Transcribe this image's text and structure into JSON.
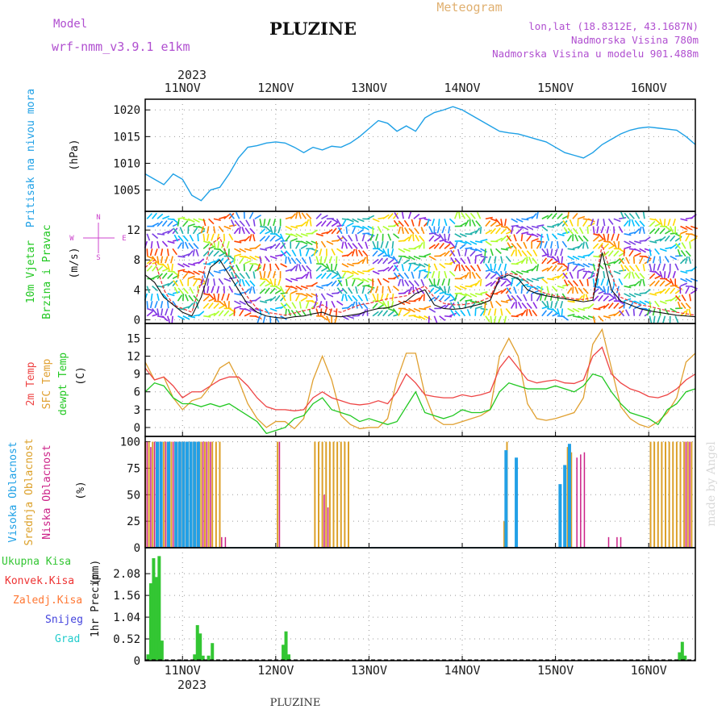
{
  "header": {
    "model_label": "Model",
    "model_name": "wrf-nmm_v3.9.1  e1km",
    "title": "PLUZINE",
    "meteogram_label": "Meteogram",
    "lonlat": "lon,lat (18.8312E, 43.1687N)",
    "elevation": "Nadmorska Visina 780m",
    "model_elevation": "Nadmorska Visina u modelu 901.488m"
  },
  "footer": {
    "station": "PLUZINE",
    "watermark": "made by Angel"
  },
  "colors": {
    "pressure": "#1ea0e6",
    "t2m": "#ee4444",
    "tsfc": "#e0a030",
    "dewpt": "#22c822",
    "cloud_high": "#22a0e6",
    "cloud_mid": "#dca028",
    "cloud_low": "#cc2288",
    "precip_total": "#33c633",
    "precip_conv": "#ee3333",
    "precip_frz": "#ff7733",
    "snow": "#4444dd",
    "hail": "#22cccc",
    "wind_ylabel": "#22c822",
    "wind_axis": "#cc44cc"
  },
  "chart_data": [
    {
      "type": "line",
      "name": "pressure",
      "ylabel": "Pritisak na nivou mora",
      "unit": "(hPa)",
      "yticks": [
        1005,
        1010,
        1015,
        1020
      ],
      "ylim": [
        1001,
        1022
      ],
      "xlim": [
        10.6,
        16.5
      ],
      "year": "2023",
      "days": [
        "11NOV",
        "12NOV",
        "13NOV",
        "14NOV",
        "15NOV",
        "16NOV"
      ],
      "grid": true,
      "x": [
        10.6,
        10.7,
        10.8,
        10.9,
        11.0,
        11.1,
        11.2,
        11.3,
        11.4,
        11.5,
        11.6,
        11.7,
        11.8,
        11.9,
        12.0,
        12.1,
        12.2,
        12.3,
        12.4,
        12.5,
        12.6,
        12.7,
        12.8,
        12.9,
        13.0,
        13.1,
        13.2,
        13.3,
        13.4,
        13.5,
        13.6,
        13.7,
        13.8,
        13.9,
        14.0,
        14.1,
        14.2,
        14.3,
        14.4,
        14.5,
        14.6,
        14.7,
        14.8,
        14.9,
        15.0,
        15.1,
        15.2,
        15.3,
        15.4,
        15.5,
        15.6,
        15.7,
        15.8,
        15.9,
        16.0,
        16.1,
        16.2,
        16.3,
        16.4,
        16.5
      ],
      "y": [
        1008,
        1007,
        1006,
        1008,
        1007,
        1004,
        1003,
        1005,
        1005.5,
        1008,
        1011,
        1013,
        1013.3,
        1013.8,
        1014,
        1013.8,
        1013,
        1012,
        1013,
        1012.5,
        1013.2,
        1013,
        1013.8,
        1015,
        1016.5,
        1018,
        1017.5,
        1016,
        1017,
        1016,
        1018.5,
        1019.5,
        1020,
        1020.6,
        1020,
        1019,
        1018,
        1017,
        1016,
        1015.7,
        1015.5,
        1015,
        1014.5,
        1014,
        1013,
        1012,
        1011.5,
        1011,
        1012,
        1013.5,
        1014.5,
        1015.5,
        1016.2,
        1016.6,
        1016.8,
        1016.6,
        1016.4,
        1016.2,
        1015,
        1013.5
      ]
    },
    {
      "type": "line",
      "name": "wind",
      "ylabel_lines": [
        "10m Vjetar",
        "Brzina i Pravac"
      ],
      "unit": "(m/s)",
      "yticks": [
        0,
        4,
        8,
        12
      ],
      "ylim": [
        -0.5,
        14.5
      ],
      "compass": {
        "n": "N",
        "s": "S",
        "w": "W",
        "e": "E"
      },
      "series": [
        {
          "name": "speed",
          "x": [
            10.6,
            10.7,
            10.8,
            10.9,
            11.0,
            11.1,
            11.2,
            11.3,
            11.4,
            11.5,
            11.6,
            11.7,
            11.8,
            11.9,
            12.0,
            12.1,
            12.2,
            12.3,
            12.4,
            12.5,
            12.6,
            12.7,
            12.8,
            12.9,
            13.0,
            13.1,
            13.2,
            13.3,
            13.4,
            13.5,
            13.6,
            13.7,
            13.8,
            13.9,
            14.0,
            14.1,
            14.2,
            14.3,
            14.4,
            14.5,
            14.6,
            14.7,
            14.8,
            14.9,
            15.0,
            15.1,
            15.2,
            15.3,
            15.4,
            15.5,
            15.6,
            15.7,
            15.8,
            15.9,
            16.0,
            16.1,
            16.2,
            16.3,
            16.4,
            16.5
          ],
          "y": [
            6,
            5,
            3,
            2,
            1,
            0.5,
            3,
            7,
            8,
            6,
            4,
            2,
            1,
            0.5,
            0.3,
            0.2,
            0.4,
            0.5,
            0.8,
            1,
            0.5,
            0.4,
            0.6,
            0.8,
            1.2,
            1.5,
            1.6,
            2,
            2.5,
            3.5,
            4,
            2,
            1.5,
            1.4,
            1.5,
            1.8,
            2.1,
            2.6,
            5.5,
            6,
            5.5,
            4,
            3.5,
            3.2,
            3,
            2.8,
            2.6,
            2.4,
            2.6,
            9,
            4,
            2.5,
            2,
            1.5,
            1.2,
            1,
            0.8,
            0.6,
            0.5,
            0.4
          ]
        },
        {
          "name": "gust",
          "x": [
            10.6,
            10.7,
            10.8,
            10.9,
            11.0,
            11.1,
            11.2,
            11.3,
            11.4,
            11.5,
            11.6,
            11.7,
            11.8,
            11.9,
            12.0,
            12.1,
            12.2,
            12.3,
            12.4,
            12.5,
            12.6,
            12.7,
            12.8,
            12.9,
            13.0,
            13.1,
            13.2,
            13.3,
            13.4,
            13.5,
            13.6,
            13.7,
            13.8,
            13.9,
            14.0,
            14.1,
            14.2,
            14.3,
            14.4,
            14.5,
            14.6,
            14.7,
            14.8,
            14.9,
            15.0,
            15.1,
            15.2,
            15.3,
            15.4,
            15.5,
            15.6,
            15.7,
            15.8,
            15.9,
            16.0,
            16.1,
            16.2,
            16.3,
            16.4,
            16.5
          ],
          "y": [
            7,
            8,
            4,
            2,
            1.5,
            1,
            5,
            10,
            11,
            8,
            5,
            3,
            1.5,
            1,
            0.8,
            0.6,
            0.9,
            1.2,
            1.5,
            2,
            1.2,
            1,
            1.5,
            2,
            2.2,
            2.5,
            2.8,
            3,
            3.2,
            4,
            4.5,
            3,
            2.2,
            2,
            2,
            2.2,
            2.5,
            3,
            5.8,
            6.2,
            6,
            5,
            4,
            3.5,
            3.2,
            3,
            2.8,
            2.7,
            3,
            10,
            6,
            3,
            2.5,
            2,
            1.8,
            1.5,
            1.2,
            1,
            0.8,
            0.6
          ]
        }
      ]
    },
    {
      "type": "line",
      "name": "temperature",
      "ylabel_lines": [
        "2m Temp",
        "SFC Temp",
        "dewpt Temp"
      ],
      "unit": "(C)",
      "yticks": [
        0,
        3,
        6,
        9,
        12,
        15
      ],
      "ylim": [
        -1.5,
        17.5
      ],
      "series": [
        {
          "name": "2m Temp",
          "x": [
            10.6,
            10.7,
            10.8,
            10.9,
            11.0,
            11.1,
            11.2,
            11.3,
            11.4,
            11.5,
            11.6,
            11.7,
            11.8,
            11.9,
            12.0,
            12.1,
            12.2,
            12.3,
            12.4,
            12.5,
            12.6,
            12.7,
            12.8,
            12.9,
            13.0,
            13.1,
            13.2,
            13.3,
            13.4,
            13.5,
            13.6,
            13.7,
            13.8,
            13.9,
            14.0,
            14.1,
            14.2,
            14.3,
            14.4,
            14.5,
            14.6,
            14.7,
            14.8,
            14.9,
            15.0,
            15.1,
            15.2,
            15.3,
            15.4,
            15.5,
            15.6,
            15.7,
            15.8,
            15.9,
            16.0,
            16.1,
            16.2,
            16.3,
            16.4,
            16.5
          ],
          "y": [
            10,
            8,
            8.5,
            7,
            5,
            6,
            6,
            7,
            8,
            8.5,
            8.5,
            7,
            5,
            3.5,
            3,
            3,
            2.8,
            3,
            5,
            6,
            5,
            4.5,
            4,
            3.8,
            4,
            4.5,
            4,
            6,
            9,
            7.5,
            5.5,
            5.2,
            5,
            5,
            5.5,
            5.2,
            5.5,
            6,
            10,
            12,
            10,
            8,
            7.5,
            7.8,
            8,
            7.5,
            7.4,
            8,
            12,
            13.5,
            9,
            7.5,
            6.5,
            6,
            5.2,
            5,
            5.5,
            6.5,
            8,
            9
          ]
        },
        {
          "name": "SFC Temp",
          "x": [
            10.6,
            10.7,
            10.8,
            10.9,
            11.0,
            11.1,
            11.2,
            11.3,
            11.4,
            11.5,
            11.6,
            11.7,
            11.8,
            11.9,
            12.0,
            12.1,
            12.2,
            12.3,
            12.4,
            12.5,
            12.6,
            12.7,
            12.8,
            12.9,
            13.0,
            13.1,
            13.2,
            13.3,
            13.4,
            13.5,
            13.6,
            13.7,
            13.8,
            13.9,
            14.0,
            14.1,
            14.2,
            14.3,
            14.4,
            14.5,
            14.6,
            14.7,
            14.8,
            14.9,
            15.0,
            15.1,
            15.2,
            15.3,
            15.4,
            15.5,
            15.6,
            15.7,
            15.8,
            15.9,
            16.0,
            16.1,
            16.2,
            16.3,
            16.4,
            16.5
          ],
          "y": [
            11,
            8,
            8.5,
            5,
            3,
            4.5,
            5,
            7,
            10,
            11,
            8,
            4,
            1.5,
            0,
            1,
            1,
            -0.2,
            1.5,
            8,
            12,
            8,
            2,
            0.5,
            -0.2,
            0,
            0,
            1.5,
            8,
            12.5,
            12.5,
            5.5,
            1.5,
            0.5,
            0.5,
            1,
            1.5,
            2,
            3,
            12,
            15,
            12,
            4,
            1.5,
            1.2,
            1.5,
            2,
            2.5,
            5,
            14,
            16.5,
            10,
            3.5,
            1.5,
            0.5,
            0,
            1,
            2.5,
            5,
            11,
            12.5
          ]
        },
        {
          "name": "dewpt Temp",
          "x": [
            10.6,
            10.7,
            10.8,
            10.9,
            11.0,
            11.1,
            11.2,
            11.3,
            11.4,
            11.5,
            11.6,
            11.7,
            11.8,
            11.9,
            12.0,
            12.1,
            12.2,
            12.3,
            12.4,
            12.5,
            12.6,
            12.7,
            12.8,
            12.9,
            13.0,
            13.1,
            13.2,
            13.3,
            13.4,
            13.5,
            13.6,
            13.7,
            13.8,
            13.9,
            14.0,
            14.1,
            14.2,
            14.3,
            14.4,
            14.5,
            14.6,
            14.7,
            14.8,
            14.9,
            15.0,
            15.1,
            15.2,
            15.3,
            15.4,
            15.5,
            15.6,
            15.7,
            15.8,
            15.9,
            16.0,
            16.1,
            16.2,
            16.3,
            16.4,
            16.5
          ],
          "y": [
            6,
            7.5,
            7,
            5,
            4,
            4,
            3.5,
            4,
            3.5,
            4,
            3,
            2,
            1,
            -1,
            -0.5,
            0,
            1.5,
            2,
            4,
            5,
            3,
            2.5,
            2,
            1,
            1.5,
            1,
            0.5,
            1,
            3.5,
            6,
            2.5,
            2,
            1.5,
            2,
            3,
            2.5,
            2.5,
            3,
            6,
            7.5,
            7,
            6.5,
            6.5,
            6.5,
            7,
            6.5,
            6,
            7,
            9,
            8.5,
            6,
            4,
            2.5,
            2,
            1.5,
            0.5,
            3,
            4,
            6,
            6.5
          ]
        }
      ]
    },
    {
      "type": "bar",
      "name": "cloud_cover",
      "ylabel_lines": [
        "Visoka Oblacnost",
        "Srednja Oblacnost",
        "Niska Oblacnost"
      ],
      "unit": "(%)",
      "yticks": [
        0,
        25,
        50,
        75,
        100
      ],
      "ylim": [
        0,
        105
      ],
      "series": [
        {
          "name": "Srednja Oblacnost",
          "x": [
            10.6,
            10.64,
            10.68,
            10.72,
            10.76,
            10.8,
            10.84,
            10.88,
            10.92,
            10.96,
            11.0,
            11.04,
            11.08,
            11.12,
            11.16,
            11.2,
            11.24,
            11.28,
            11.32,
            11.36,
            11.4,
            12.02,
            12.42,
            12.46,
            12.5,
            12.54,
            12.58,
            12.62,
            12.66,
            12.7,
            12.74,
            12.78,
            14.45,
            14.48,
            15.13,
            15.17,
            16.02,
            16.06,
            16.1,
            16.14,
            16.18,
            16.22,
            16.26,
            16.3,
            16.34,
            16.38,
            16.42,
            16.46
          ],
          "y": [
            100,
            100,
            100,
            100,
            100,
            100,
            100,
            100,
            100,
            100,
            100,
            100,
            100,
            100,
            100,
            100,
            100,
            100,
            100,
            100,
            100,
            100,
            100,
            100,
            100,
            100,
            100,
            100,
            100,
            100,
            100,
            100,
            25,
            100,
            95,
            90,
            100,
            100,
            100,
            100,
            100,
            100,
            100,
            100,
            100,
            100,
            100,
            100
          ]
        },
        {
          "name": "Niska Oblacnost",
          "x": [
            10.62,
            10.66,
            10.7,
            10.74,
            10.78,
            10.82,
            10.86,
            10.9,
            10.94,
            10.98,
            11.02,
            11.06,
            11.1,
            11.14,
            11.18,
            11.22,
            11.26,
            11.3,
            11.42,
            11.46,
            12.04,
            12.52,
            12.56,
            15.23,
            15.27,
            15.31,
            15.57,
            15.66,
            15.7,
            16.4,
            16.44
          ],
          "y": [
            100,
            95,
            100,
            100,
            100,
            100,
            100,
            100,
            100,
            100,
            100,
            100,
            100,
            100,
            100,
            100,
            100,
            100,
            10,
            10,
            100,
            50,
            38,
            85,
            88,
            90,
            10,
            10,
            10,
            100,
            100
          ]
        },
        {
          "name": "Visoka Oblacnost",
          "x": [
            10.73,
            10.77,
            10.85,
            10.93,
            10.97,
            11.01,
            11.05,
            11.09,
            11.13,
            11.17,
            14.47,
            14.58,
            15.05,
            15.1,
            15.15
          ],
          "y": [
            100,
            100,
            100,
            100,
            100,
            100,
            100,
            100,
            100,
            100,
            92,
            85,
            60,
            78,
            98
          ]
        }
      ]
    },
    {
      "type": "bar",
      "name": "precipitation",
      "ylabel_lines": [
        "1hr Precip",
        "(mm)"
      ],
      "legend": [
        "Ukupna  Kisa",
        "Konvek.Kisa",
        "Zaledj.Kisa",
        "Snijeg",
        "Grad"
      ],
      "yticks": [
        0,
        0.52,
        1.04,
        1.56,
        2.08
      ],
      "ylim": [
        0,
        2.7
      ],
      "x": [
        10.63,
        10.66,
        10.69,
        10.72,
        10.75,
        10.78,
        11.13,
        11.16,
        11.19,
        11.22,
        11.28,
        11.32,
        12.08,
        12.11,
        12.14,
        16.33,
        16.36,
        16.39
      ],
      "values": [
        0.15,
        1.85,
        2.45,
        2.0,
        2.5,
        0.48,
        0.15,
        0.85,
        0.65,
        0.12,
        0.12,
        0.42,
        0.38,
        0.7,
        0.15,
        0.2,
        0.45,
        0.12
      ]
    }
  ]
}
